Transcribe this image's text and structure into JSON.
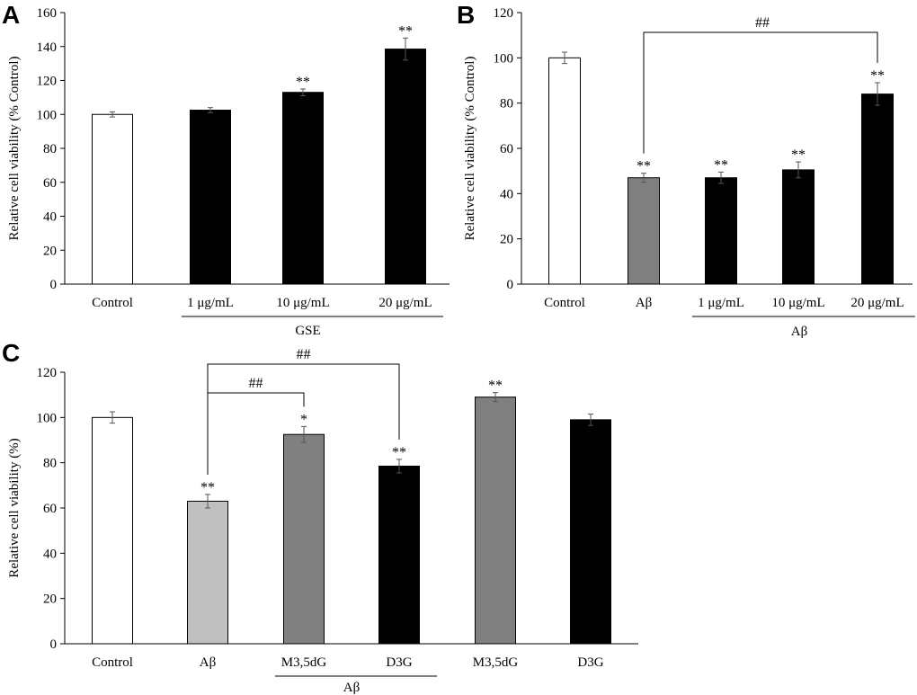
{
  "chart_data": [
    {
      "panel": "A",
      "type": "bar",
      "ylabel": "Relative cell viability (% Control)",
      "ylim": [
        0,
        160
      ],
      "yticks": [
        0,
        20,
        40,
        60,
        80,
        100,
        120,
        140,
        160
      ],
      "categories": [
        "Control",
        "1 μg/mL",
        "10 μg/mL",
        "20 μg/mL"
      ],
      "values": [
        100,
        102.5,
        113,
        138.5
      ],
      "errors": [
        1.5,
        1.5,
        2,
        6.5
      ],
      "colors": [
        "#ffffff",
        "#000000",
        "#000000",
        "#000000"
      ],
      "significance": [
        "",
        "",
        "**",
        "**"
      ],
      "groups": [
        {
          "label": "GSE",
          "from": 1,
          "to": 3
        }
      ],
      "brackets": []
    },
    {
      "panel": "B",
      "type": "bar",
      "ylabel": "Relative cell viability (% Control)",
      "ylim": [
        0,
        120
      ],
      "yticks": [
        0,
        20,
        40,
        60,
        80,
        100,
        120
      ],
      "categories": [
        "Control",
        "Aβ",
        "1 μg/mL",
        "10 μg/mL",
        "20 μg/mL"
      ],
      "values": [
        100,
        47,
        47,
        50.5,
        84
      ],
      "errors": [
        2.5,
        2,
        2.5,
        3.5,
        5
      ],
      "colors": [
        "#ffffff",
        "#808080",
        "#000000",
        "#000000",
        "#000000"
      ],
      "significance": [
        "",
        "**",
        "**",
        "**",
        "**"
      ],
      "groups": [
        {
          "label": "Aβ",
          "from": 2,
          "to": 4
        }
      ],
      "brackets": [
        {
          "from": 1,
          "to": 4,
          "label": "##"
        }
      ]
    },
    {
      "panel": "C",
      "type": "bar",
      "ylabel": "Relative cell viability (%)",
      "ylim": [
        0,
        120
      ],
      "yticks": [
        0,
        20,
        40,
        60,
        80,
        100,
        120
      ],
      "categories": [
        "Control",
        "Aβ",
        "M3,5dG",
        "D3G",
        "M3,5dG",
        "D3G"
      ],
      "values": [
        100,
        63,
        92.5,
        78.5,
        109,
        99
      ],
      "errors": [
        2.5,
        3,
        3.5,
        3,
        2,
        2.5
      ],
      "colors": [
        "#ffffff",
        "#c0c0c0",
        "#808080",
        "#000000",
        "#808080",
        "#000000"
      ],
      "significance": [
        "",
        "**",
        "*",
        "**",
        "**",
        ""
      ],
      "groups": [
        {
          "label": "Aβ",
          "from": 2,
          "to": 3
        }
      ],
      "brackets": [
        {
          "from": 1,
          "to": 2,
          "label": "##"
        },
        {
          "from": 1,
          "to": 3,
          "label": "##"
        }
      ]
    }
  ]
}
